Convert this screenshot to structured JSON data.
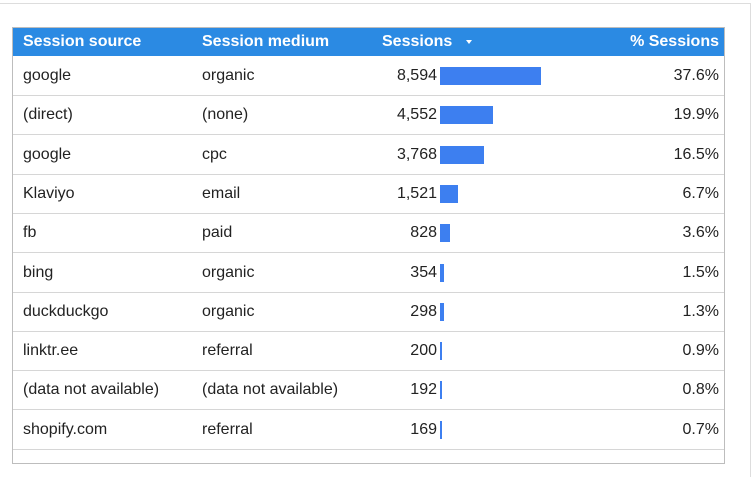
{
  "header": {
    "columns": [
      "Session source",
      "Session medium",
      "Sessions",
      "% Sessions"
    ]
  },
  "table": {
    "rows": [
      [
        "google",
        "organic",
        {
          "value": 8594,
          "label": "8,594"
        },
        "37.6%"
      ],
      [
        "(direct)",
        "(none)",
        {
          "value": 4552,
          "label": "4,552"
        },
        "19.9%"
      ],
      [
        "google",
        "cpc",
        {
          "value": 3768,
          "label": "3,768"
        },
        "16.5%"
      ],
      [
        "Klaviyo",
        "email",
        {
          "value": 1521,
          "label": "1,521"
        },
        "6.7%"
      ],
      [
        "fb",
        "paid",
        {
          "value": 828,
          "label": "828"
        },
        "3.6%"
      ],
      [
        "bing",
        "organic",
        {
          "value": 354,
          "label": "354"
        },
        "1.5%"
      ],
      [
        "duckduckgo",
        "organic",
        {
          "value": 298,
          "label": "298"
        },
        "1.3%"
      ],
      [
        "linktr.ee",
        "referral",
        {
          "value": 200,
          "label": "200"
        },
        "0.9%"
      ],
      [
        "(data not available)",
        "(data not available)",
        {
          "value": 192,
          "label": "192"
        },
        "0.8%"
      ],
      [
        "shopify.com",
        "referral",
        {
          "value": 169,
          "label": "169"
        },
        "0.7%"
      ]
    ]
  }
}
